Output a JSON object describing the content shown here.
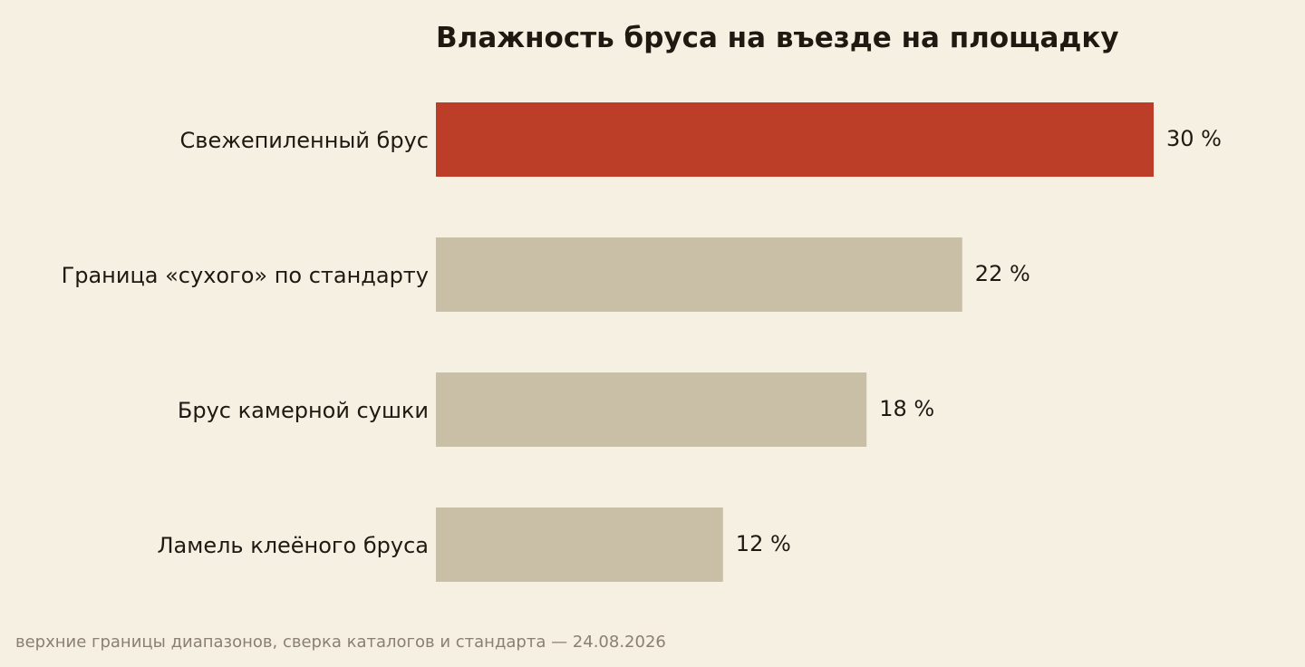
{
  "chart_data": {
    "type": "bar",
    "orientation": "horizontal",
    "title": "Влажность бруса на въезде на площадку",
    "categories": [
      "Свежепиленный брус",
      "Граница «сухого» по стандарту",
      "Брус камерной сушки",
      "Ламель клеёного бруса"
    ],
    "values": [
      30,
      22,
      18,
      12
    ],
    "value_labels": [
      "30 %",
      "22 %",
      "18 %",
      "12 %"
    ],
    "unit": "%",
    "xlim": [
      0,
      30
    ],
    "grid": false,
    "legend": "none",
    "highlight_index": 0
  },
  "colors": {
    "background": "#f6f0e3",
    "highlight": "#bc3d28",
    "bar": "#c9bfa6",
    "text": "#1e1a12",
    "footnote": "#8a8070"
  },
  "footnote": "верхние границы диапазонов, сверка каталогов и стандарта — 24.08.2026"
}
